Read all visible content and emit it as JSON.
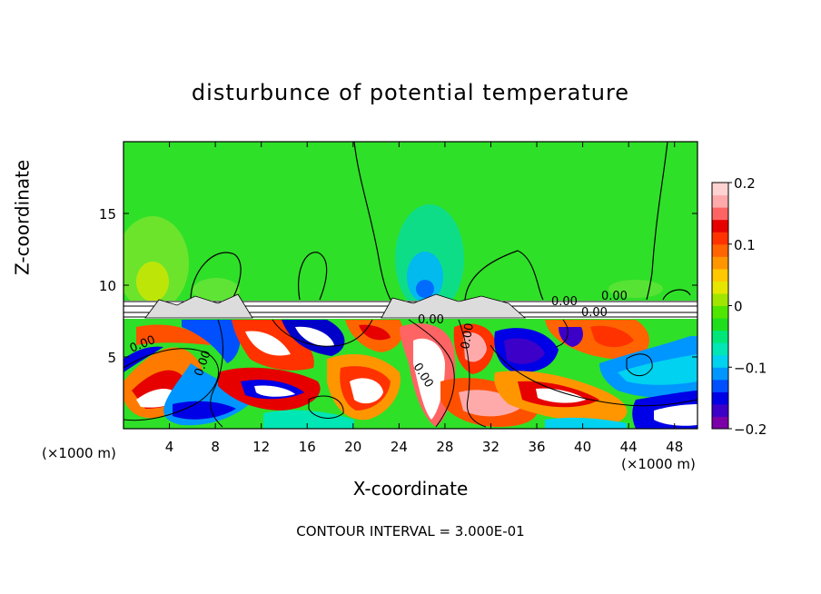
{
  "figure": {
    "title": "disturbunce of potential temperature",
    "footer": "CONTOUR INTERVAL = 3.000E-01",
    "x_unit_left": "(×1000 m)",
    "x_unit_right": "(×1000 m)"
  },
  "chart_data": {
    "type": "heatmap",
    "title": "disturbunce of potential temperature",
    "xlabel": "X-coordinate",
    "ylabel": "Z-coordinate",
    "x_unit": "(×1000 m)",
    "xlim": [
      0,
      50
    ],
    "ylim": [
      0,
      20
    ],
    "x_ticks": [
      4,
      8,
      12,
      16,
      20,
      24,
      28,
      32,
      36,
      40,
      44,
      48
    ],
    "y_ticks": [
      5,
      10,
      15
    ],
    "colorbar": {
      "range": [
        -0.2,
        0.2
      ],
      "tick_values": [
        0.2,
        0.1,
        0,
        -0.1,
        -0.2
      ],
      "tick_labels": [
        "0.2",
        "0.1",
        "0",
        "−0.1",
        "−0.2"
      ],
      "colors": [
        "#7b00a8",
        "#3c00c8",
        "#0000e6",
        "#0050ff",
        "#0096ff",
        "#00d2f0",
        "#00e6b4",
        "#00e678",
        "#1ede1e",
        "#50e600",
        "#a0e600",
        "#e6e600",
        "#ffc800",
        "#ff9600",
        "#ff6400",
        "#ff3200",
        "#e60000",
        "#ff6464",
        "#ffaaaa",
        "#ffd2d2"
      ]
    },
    "contour_labels": [
      "0.00",
      "0.00",
      "0.00",
      "0.00",
      "0.00",
      "0.00",
      "0.00",
      "0.00"
    ],
    "contour_interval": "3.000E-01",
    "background_color": "#2fe028"
  }
}
